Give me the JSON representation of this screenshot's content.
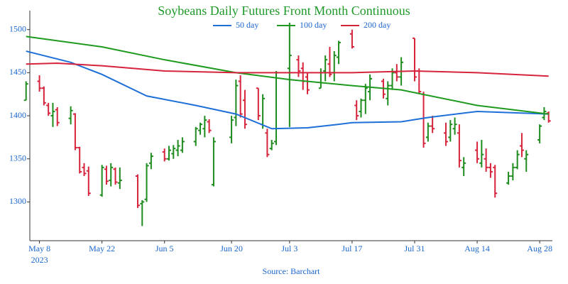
{
  "chart_data": {
    "type": "ohlc",
    "title": "Soybeans Daily Futures Front Month Continuous",
    "source": "Source: Barchart",
    "x": [
      "2023-05-05",
      "2023-05-08",
      "2023-05-09",
      "2023-05-10",
      "2023-05-11",
      "2023-05-12",
      "2023-05-15",
      "2023-05-16",
      "2023-05-17",
      "2023-05-18",
      "2023-05-19",
      "2023-05-22",
      "2023-05-23",
      "2023-05-24",
      "2023-05-25",
      "2023-05-26",
      "2023-05-30",
      "2023-05-31",
      "2023-06-01",
      "2023-06-02",
      "2023-06-05",
      "2023-06-06",
      "2023-06-07",
      "2023-06-08",
      "2023-06-09",
      "2023-06-12",
      "2023-06-13",
      "2023-06-14",
      "2023-06-15",
      "2023-06-16",
      "2023-06-20",
      "2023-06-21",
      "2023-06-22",
      "2023-06-23",
      "2023-06-26",
      "2023-06-27",
      "2023-06-28",
      "2023-06-29",
      "2023-06-30",
      "2023-07-03",
      "2023-07-05",
      "2023-07-06",
      "2023-07-07",
      "2023-07-10",
      "2023-07-11",
      "2023-07-12",
      "2023-07-13",
      "2023-07-14",
      "2023-07-17",
      "2023-07-18",
      "2023-07-19",
      "2023-07-20",
      "2023-07-21",
      "2023-07-24",
      "2023-07-25",
      "2023-07-26",
      "2023-07-27",
      "2023-07-28",
      "2023-07-31",
      "2023-08-01",
      "2023-08-02",
      "2023-08-03",
      "2023-08-04",
      "2023-08-07",
      "2023-08-08",
      "2023-08-09",
      "2023-08-10",
      "2023-08-11",
      "2023-08-14",
      "2023-08-15",
      "2023-08-16",
      "2023-08-17",
      "2023-08-18",
      "2023-08-21",
      "2023-08-22",
      "2023-08-23",
      "2023-08-24",
      "2023-08-25",
      "2023-08-28",
      "2023-08-29",
      "2023-08-30"
    ],
    "open": [
      1418,
      1440,
      1432,
      1412,
      1400,
      1407,
      1397,
      1402,
      1363,
      1340,
      1336,
      1308,
      1338,
      1325,
      1338,
      1322,
      1330,
      1298,
      1303,
      1345,
      1358,
      1350,
      1356,
      1360,
      1360,
      1370,
      1383,
      1385,
      1393,
      1320,
      1375,
      1398,
      1440,
      1418,
      1432,
      1390,
      1380,
      1362,
      1370,
      1455,
      1465,
      1455,
      1445,
      1432,
      1452,
      1460,
      1450,
      1468,
      1495,
      1412,
      1405,
      1418,
      1428,
      1440,
      1420,
      1435,
      1450,
      1445,
      1490,
      1452,
      1425,
      1375,
      1388,
      1380,
      1375,
      1385,
      1380,
      1340,
      1360,
      1345,
      1350,
      1340,
      1340,
      1322,
      1330,
      1340,
      1365,
      1350,
      1372,
      1398,
      1403
    ],
    "high": [
      1440,
      1447,
      1434,
      1415,
      1415,
      1410,
      1411,
      1403,
      1364,
      1345,
      1341,
      1343,
      1342,
      1345,
      1340,
      1340,
      1332,
      1302,
      1345,
      1357,
      1362,
      1365,
      1366,
      1372,
      1375,
      1387,
      1392,
      1400,
      1396,
      1375,
      1400,
      1442,
      1447,
      1430,
      1432,
      1425,
      1385,
      1372,
      1452,
      1508,
      1470,
      1462,
      1450,
      1455,
      1470,
      1480,
      1475,
      1487,
      1500,
      1418,
      1420,
      1437,
      1448,
      1443,
      1440,
      1455,
      1460,
      1468,
      1490,
      1455,
      1428,
      1392,
      1400,
      1392,
      1395,
      1398,
      1390,
      1352,
      1370,
      1372,
      1362,
      1345,
      1343,
      1335,
      1345,
      1360,
      1380,
      1360,
      1390,
      1410,
      1405
    ],
    "low": [
      1418,
      1428,
      1412,
      1400,
      1387,
      1388,
      1390,
      1360,
      1333,
      1330,
      1307,
      1306,
      1320,
      1318,
      1320,
      1315,
      1293,
      1272,
      1300,
      1338,
      1347,
      1348,
      1350,
      1353,
      1357,
      1365,
      1378,
      1375,
      1380,
      1318,
      1368,
      1388,
      1398,
      1385,
      1395,
      1385,
      1352,
      1360,
      1366,
      1387,
      1445,
      1430,
      1425,
      1432,
      1440,
      1445,
      1440,
      1460,
      1478,
      1395,
      1398,
      1402,
      1418,
      1420,
      1412,
      1430,
      1440,
      1435,
      1440,
      1425,
      1363,
      1370,
      1380,
      1365,
      1370,
      1378,
      1340,
      1330,
      1345,
      1340,
      1335,
      1328,
      1305,
      1320,
      1325,
      1338,
      1352,
      1335,
      1368,
      1395,
      1392
    ],
    "close": [
      1437,
      1432,
      1415,
      1403,
      1405,
      1392,
      1406,
      1363,
      1335,
      1333,
      1310,
      1340,
      1324,
      1340,
      1323,
      1325,
      1296,
      1300,
      1342,
      1353,
      1350,
      1360,
      1362,
      1365,
      1370,
      1385,
      1390,
      1395,
      1383,
      1370,
      1395,
      1435,
      1402,
      1390,
      1400,
      1420,
      1355,
      1368,
      1450,
      1470,
      1452,
      1440,
      1430,
      1450,
      1465,
      1448,
      1470,
      1485,
      1480,
      1400,
      1418,
      1432,
      1443,
      1425,
      1435,
      1450,
      1445,
      1462,
      1445,
      1428,
      1368,
      1388,
      1385,
      1370,
      1390,
      1390,
      1348,
      1345,
      1350,
      1355,
      1340,
      1335,
      1310,
      1330,
      1340,
      1355,
      1360,
      1355,
      1388,
      1405,
      1394
    ],
    "up_color": "#1e8c1e",
    "down_color": "#d6243c",
    "series": [
      {
        "name": "50 day",
        "color": "#1f6fd8",
        "x": [
          "2023-05-05",
          "2023-05-15",
          "2023-05-22",
          "2023-06-01",
          "2023-06-12",
          "2023-06-21",
          "2023-06-29",
          "2023-07-07",
          "2023-07-14",
          "2023-07-17",
          "2023-07-28",
          "2023-08-03",
          "2023-08-14",
          "2023-08-30"
        ],
        "values": [
          1475,
          1462,
          1448,
          1423,
          1412,
          1402,
          1385,
          1386,
          1390,
          1392,
          1393,
          1398,
          1405,
          1402
        ]
      },
      {
        "name": "100 day",
        "color": "#1e9a1e",
        "x": [
          "2023-05-05",
          "2023-05-22",
          "2023-06-05",
          "2023-06-21",
          "2023-07-03",
          "2023-07-17",
          "2023-07-28",
          "2023-08-14",
          "2023-08-30"
        ],
        "values": [
          1492,
          1480,
          1465,
          1450,
          1442,
          1435,
          1430,
          1412,
          1402
        ]
      },
      {
        "name": "200 day",
        "color": "#d6243c",
        "x": [
          "2023-05-05",
          "2023-05-12",
          "2023-05-22",
          "2023-06-05",
          "2023-06-21",
          "2023-07-17",
          "2023-07-31",
          "2023-08-14",
          "2023-08-30"
        ],
        "values": [
          1460,
          1461,
          1458,
          1452,
          1450,
          1450,
          1452,
          1450,
          1446
        ]
      }
    ],
    "xlim": [
      "2023-05-06",
      "2023-08-31"
    ],
    "xticks": [
      {
        "value": "2023-05-08",
        "label": "May 8"
      },
      {
        "value": "2023-05-22",
        "label": "May 22"
      },
      {
        "value": "2023-06-05",
        "label": "Jun 5"
      },
      {
        "value": "2023-06-20",
        "label": "Jun 20"
      },
      {
        "value": "2023-07-03",
        "label": "Jul 3"
      },
      {
        "value": "2023-07-17",
        "label": "Jul 17"
      },
      {
        "value": "2023-07-31",
        "label": "Jul 31"
      },
      {
        "value": "2023-08-14",
        "label": "Aug 14"
      },
      {
        "value": "2023-08-28",
        "label": "Aug 28"
      }
    ],
    "x_year": "2023",
    "ylim": [
      1255,
      1522
    ],
    "yticks": [
      1300,
      1350,
      1400,
      1450,
      1500
    ],
    "grid": false
  }
}
